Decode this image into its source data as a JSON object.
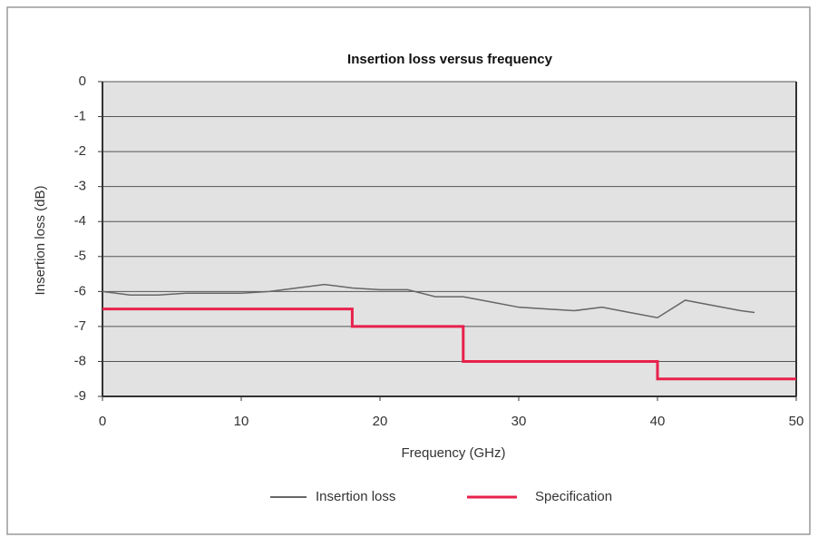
{
  "chart_data": {
    "type": "line",
    "title": "Insertion loss versus frequency",
    "xlabel": "Frequency (GHz)",
    "ylabel": "Insertion loss (dB)",
    "xlim": [
      0,
      50
    ],
    "xticks": [
      0,
      10,
      20,
      30,
      40,
      50
    ],
    "ylim": [
      -9,
      0
    ],
    "yticks": [
      0,
      -1,
      -2,
      -3,
      -4,
      -5,
      -6,
      -7,
      -8,
      -9
    ],
    "grid": true,
    "legend": "bottom",
    "series": [
      {
        "name": "Insertion loss",
        "color": "#666666",
        "x": [
          0,
          2,
          4,
          6,
          8,
          10,
          12,
          14,
          16,
          18,
          20,
          22,
          24,
          26,
          28,
          30,
          32,
          34,
          36,
          38,
          40,
          42,
          44,
          46,
          47
        ],
        "values": [
          -6.0,
          -6.1,
          -6.1,
          -6.05,
          -6.05,
          -6.05,
          -6.0,
          -5.9,
          -5.8,
          -5.9,
          -5.95,
          -5.95,
          -6.15,
          -6.15,
          -6.3,
          -6.45,
          -6.5,
          -6.55,
          -6.45,
          -6.6,
          -6.75,
          -6.25,
          -6.4,
          -6.55,
          -6.6
        ]
      },
      {
        "name": "Specification",
        "color": "#e8214b",
        "x": [
          0,
          18,
          18,
          26,
          26,
          40,
          40,
          50
        ],
        "values": [
          -6.5,
          -6.5,
          -7,
          -7,
          -8,
          -8,
          -8.5,
          -8.5
        ]
      }
    ]
  }
}
